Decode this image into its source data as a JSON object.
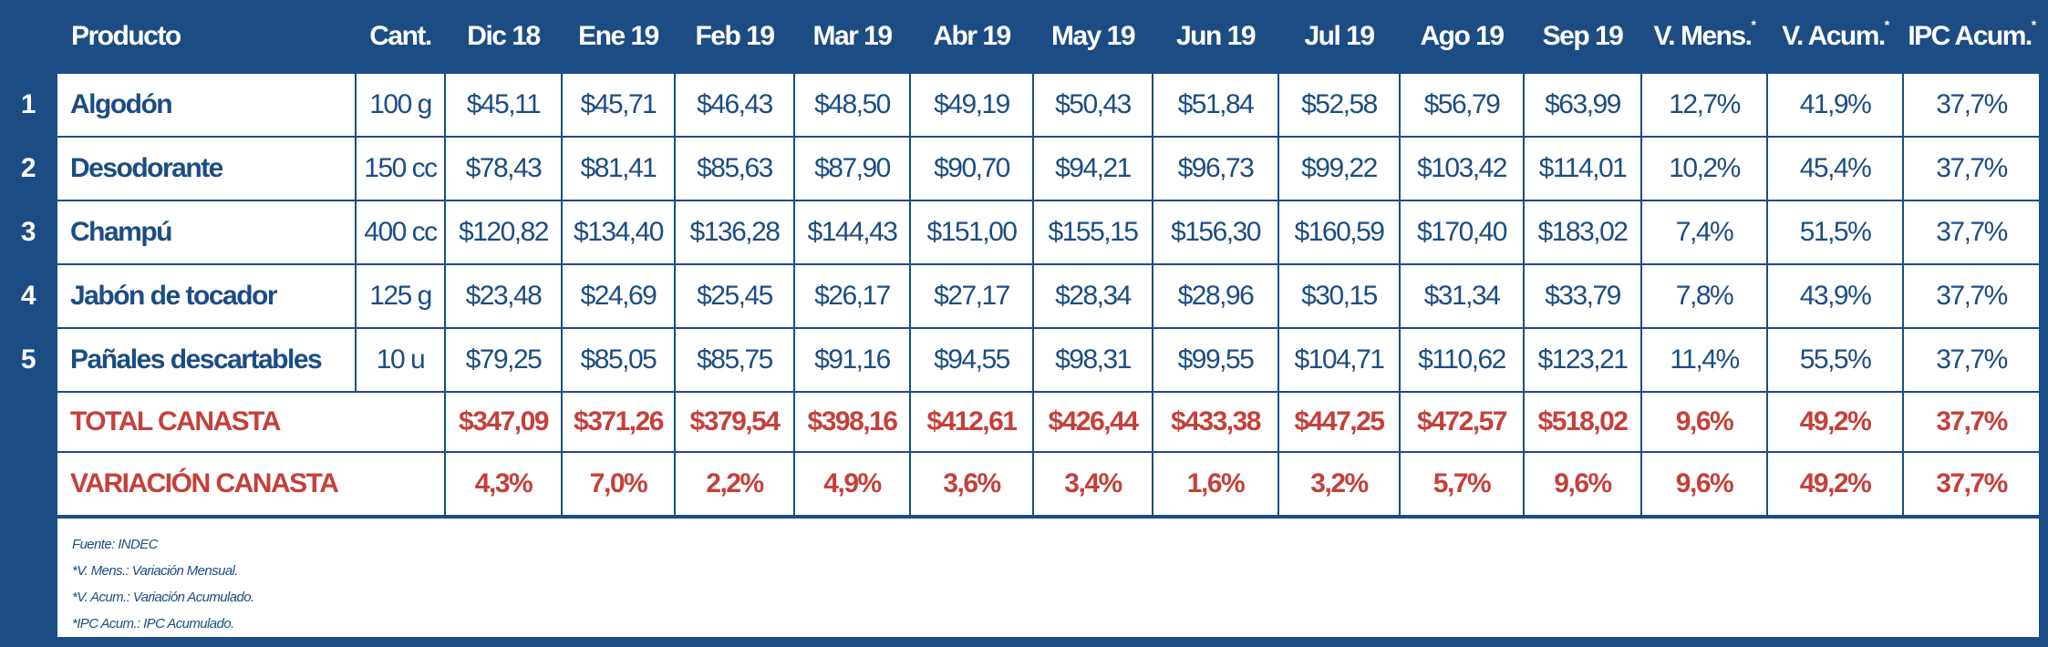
{
  "header": {
    "product": "Producto",
    "quantity": "Cant.",
    "months": [
      "Dic  18",
      "Ene 19",
      "Feb 19",
      "Mar 19",
      "Abr 19",
      "May 19",
      "Jun 19",
      "Jul 19",
      "Ago 19",
      "Sep 19"
    ],
    "v_mens": "V. Mens.",
    "v_acum": "V. Acum.",
    "ipc_acum": "IPC Acum.",
    "asterisk": "*"
  },
  "rows": [
    {
      "num": "1",
      "name": "Algodón",
      "qty": "100 g",
      "prices": [
        "$45,11",
        "$45,71",
        "$46,43",
        "$48,50",
        "$49,19",
        "$50,43",
        "$51,84",
        "$52,58",
        "$56,79",
        "$63,99"
      ],
      "v_mens": "12,7%",
      "v_acum": "41,9%",
      "ipc": "37,7%"
    },
    {
      "num": "2",
      "name": "Desodorante",
      "qty": "150 cc",
      "prices": [
        "$78,43",
        "$81,41",
        "$85,63",
        "$87,90",
        "$90,70",
        "$94,21",
        "$96,73",
        "$99,22",
        "$103,42",
        "$114,01"
      ],
      "v_mens": "10,2%",
      "v_acum": "45,4%",
      "ipc": "37,7%"
    },
    {
      "num": "3",
      "name": "Champú",
      "qty": "400 cc",
      "prices": [
        "$120,82",
        "$134,40",
        "$136,28",
        "$144,43",
        "$151,00",
        "$155,15",
        "$156,30",
        "$160,59",
        "$170,40",
        "$183,02"
      ],
      "v_mens": "7,4%",
      "v_acum": "51,5%",
      "ipc": "37,7%"
    },
    {
      "num": "4",
      "name": "Jabón de tocador",
      "qty": "125 g",
      "prices": [
        "$23,48",
        "$24,69",
        "$25,45",
        "$26,17",
        "$27,17",
        "$28,34",
        "$28,96",
        "$30,15",
        "$31,34",
        "$33,79"
      ],
      "v_mens": "7,8%",
      "v_acum": "43,9%",
      "ipc": "37,7%"
    },
    {
      "num": "5",
      "name": "Pañales descartables",
      "qty": "10 u",
      "prices": [
        "$79,25",
        "$85,05",
        "$85,75",
        "$91,16",
        "$94,55",
        "$98,31",
        "$99,55",
        "$104,71",
        "$110,62",
        "$123,21"
      ],
      "v_mens": "11,4%",
      "v_acum": "55,5%",
      "ipc": "37,7%"
    }
  ],
  "total": {
    "label": "TOTAL CANASTA",
    "values": [
      "$347,09",
      "$371,26",
      "$379,54",
      "$398,16",
      "$412,61",
      "$426,44",
      "$433,38",
      "$447,25",
      "$472,57",
      "$518,02",
      "9,6%",
      "49,2%",
      "37,7%"
    ]
  },
  "variation": {
    "label": "VARIACIÓN CANASTA",
    "values": [
      "4,3%",
      "7,0%",
      "2,2%",
      "4,9%",
      "3,6%",
      "3,4%",
      "1,6%",
      "3,2%",
      "5,7%",
      "9,6%",
      "9,6%",
      "49,2%",
      "37,7%"
    ]
  },
  "footer": [
    "Fuente: INDEC",
    "*V. Mens.: Variación Mensual.",
    "*V. Acum.: Variación Acumulado.",
    "*IPC Acum.: IPC  Acumulado."
  ],
  "colors": {
    "blue": "#1b4d84",
    "red": "#c5403a"
  }
}
